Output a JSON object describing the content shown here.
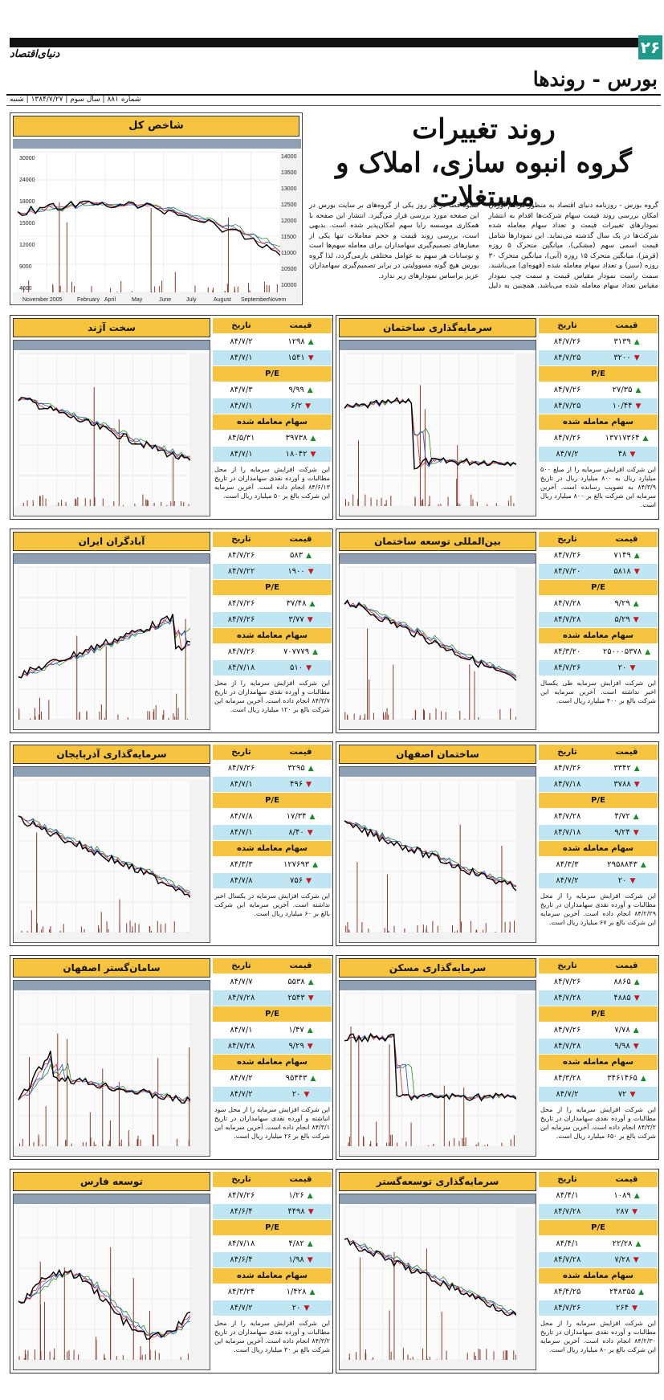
{
  "header": {
    "page_number": "۲۶",
    "logo": "دنیای‌اقتصاد",
    "section_title": "بورس - روندها",
    "dateline": "شماره ۸۸۱ | سال سوم | ۱۳۸۴/۷/۲۷ | شنبه"
  },
  "index_panel": {
    "title": "شاخص کل",
    "xticks": [
      "November",
      "2005",
      "February",
      "April",
      "May",
      "June",
      "July",
      "August",
      "September",
      "Novem"
    ],
    "yticks_left": [
      "30000",
      "24000",
      "18000",
      "15000",
      "12000",
      "9000",
      "4000"
    ],
    "yticks_right": [
      "14000",
      "13500",
      "13000",
      "12500",
      "12000",
      "11500",
      "11000",
      "10500",
      "10000"
    ]
  },
  "headline": {
    "line1": "روند تغییرات",
    "line2": "گروه انبوه سازی، املاک و مستغلات"
  },
  "intro": "گروه بورس - روزنامه دنیای اقتصاد به منظور فراهم آوردن امکان بررسی روند قیمت سهام شرکت‌ها اقدام به انتشار نمودارهای تغییرات قیمت و تعداد سهام معامله شده شرکت‌ها در یک سال گذشته می‌نماید. این نمودارها شامل قیمت اسمی سهم (مشکی)، میانگین متحرک ۵ روزه (قرمز)، میانگین متحرک ۱۵ روزه (آبی)، میانگین متحرک ۳۰ روزه (سبز) و تعداد سهام معامله شده (قهوه‌ای) می‌باشند. سمت راست نمودار مقیاس قیمت و سمت چپ نمودار مقیاس تعداد سهام معامله شده می‌باشد. همچنین به دلیل کمبود فضا در هر روز یکی از گروه‌های بر سایت بورس در این صفحه مورد بررسی قرار می‌گیرد. انتشار این صفحه با همکاری موسسه رایا سهم امکان‌پذیر شده است. بدیهی است، بررسی روند قیمت و حجم معاملات تنها یکی از معیارهای تصمیم‌گیری سهامداران برای معامله سهم‌ها است و نوسانات هر سهم به عوامل مختلفی بازمی‌گردد، لذا گروه بورس هیچ گونه مسوولیتی در برابر تصمیم‌گیری سهامداران عزیز براساس نمودارهای زیر ندارد.",
  "labels": {
    "price": "قیمت",
    "date": "تاریخ",
    "pe": "P/E",
    "volume": "سهام معامله شده"
  },
  "panels": [
    {
      "name": "سرمایه‌گذاری ساختمان",
      "r": [
        [
          "۳۱۳۹",
          "۸۴/۷/۲۶"
        ],
        [
          "۳۲۰۰",
          "۸۴/۷/۲۵"
        ],
        [
          "۲۷/۳۵",
          "۸۴/۷/۲۶"
        ],
        [
          "۱۰/۴۴",
          "۸۴/۷/۲۵"
        ],
        [
          "۱۳۷۱۷۳۶۴",
          "۸۴/۷/۲۶"
        ],
        [
          "۴۸",
          "۸۴/۷/۲"
        ]
      ],
      "note": "این شرکت افزایش سرمایه را از مبلغ ۵۰۰ میلیارد ریال به ۸۰۰ میلیارد ریال در تاریخ ۸۴/۳/۹ به تصویب رسانده است. آخرین سرمایه این شرکت بالغ بر ۸۰۰ میلیارد ریال است."
    },
    {
      "name": "سخت آژند",
      "r": [
        [
          "۱۲۹۸",
          "۸۴/۷/۲"
        ],
        [
          "۱۵۴۱",
          "۸۴/۷/۱"
        ],
        [
          "۹/۹۹",
          "۸۴/۷/۳"
        ],
        [
          "۶/۲",
          "۸۴/۷/۱"
        ],
        [
          "۳۹۷۳۸",
          "۸۴/۵/۳۱"
        ],
        [
          "۱۸۰۴۲",
          "۸۴/۷/۱"
        ]
      ],
      "note": "این شرکت افزایش سرمایه را از محل مطالبات و آورده نقدی سهامداران در تاریخ ۸۴/۶/۱۳ انجام داده است. آخرین سرمایه این شرکت بالغ بر ۵۰ میلیارد ریال است."
    },
    {
      "name": "بین‌المللی توسعه ساختمان",
      "r": [
        [
          "۷۱۴۹",
          "۸۴/۷/۲۶"
        ],
        [
          "۵۸۱۸",
          "۸۴/۷/۲۰"
        ],
        [
          "۹/۲۹",
          "۸۴/۷/۲۸"
        ],
        [
          "۵/۲۹",
          "۸۴/۷/۲۸"
        ],
        [
          "۲۵۰۰۰۵۳۷۸",
          "۸۴/۳/۲۰"
        ],
        [
          "۲۰",
          "۸۴/۷/۲۶"
        ]
      ],
      "note": "این شرکت افزایش سرمایه طی یکسال اخیر نداشته است. آخرین سرمایه این شرکت بالغ بر ۴۰۰ میلیارد ریال است."
    },
    {
      "name": "آبادگران ایران",
      "r": [
        [
          "۵۸۳",
          "۸۴/۷/۲۶"
        ],
        [
          "۱۹۰۰",
          "۸۴/۷/۲۲"
        ],
        [
          "۳۷/۴۸",
          "۸۴/۷/۲۶"
        ],
        [
          "۳/۷۷",
          "۸۴/۷/۲۶"
        ],
        [
          "۷۰۷۷۷۹",
          "۸۴/۷/۲۶"
        ],
        [
          "۵۱۰",
          "۸۴/۷/۱۸"
        ]
      ],
      "note": "این شرکت افزایش سرمایه را از محل مطالبات و آورده نقدی سهامداران در تاریخ ۸۴/۳/۷ انجام داده است. آخرین سرمایه این شرکت بالغ بر ۱۲۰ میلیارد ریال است."
    },
    {
      "name": "ساختمان اصفهان",
      "r": [
        [
          "۳۳۴۲",
          "۸۴/۷/۲۶"
        ],
        [
          "۳۷۸۸",
          "۸۴/۷/۱۸"
        ],
        [
          "۴/۷۲",
          "۸۴/۷/۲۸"
        ],
        [
          "۹/۲۴",
          "۸۴/۷/۱۸"
        ],
        [
          "۲۹۵۸۸۴۳",
          "۸۴/۳/۳"
        ],
        [
          "۲۰",
          "۸۴/۷/۲"
        ]
      ],
      "note": "این شرکت افزایش سرمایه را از محل مطالبات و آورده نقدی سهامداران در تاریخ ۸۴/۲/۲۹ انجام داده است. آخرین سرمایه این شرکت بالغ بر ۶۷ میلیارد ریال است."
    },
    {
      "name": "سرمایه‌گذاری آذربایجان",
      "r": [
        [
          "۳۲۹۵",
          "۸۴/۷/۲۶"
        ],
        [
          "۴۹۶",
          "۸۴/۷/۱"
        ],
        [
          "۱۷/۳۴",
          "۸۴/۷/۸"
        ],
        [
          "۸/۴۰",
          "۸۴/۷/۱"
        ],
        [
          "۱۲۷۶۹۳",
          "۸۴/۳/۳"
        ],
        [
          "۷۵۶",
          "۸۴/۷/۸"
        ]
      ],
      "note": "این شرکت افزایش سرمایه در یکسال اخیر نداشته است. آخرین سرمایه این شرکت بالغ بر ۶۰ میلیارد ریال است."
    },
    {
      "name": "سرمایه‌گذاری مسکن",
      "r": [
        [
          "۸۸۶۵",
          "۸۴/۷/۲۶"
        ],
        [
          "۴۸۸۵",
          "۸۴/۷/۲۸"
        ],
        [
          "۷/۷۸",
          "۸۴/۷/۲۶"
        ],
        [
          "۹/۹۸",
          "۸۴/۷/۲۸"
        ],
        [
          "۳۴۶۱۴۶۵",
          "۸۴/۳/۲۸"
        ],
        [
          "۷۲",
          "۸۴/۷/۲"
        ]
      ],
      "note": "این شرکت افزایش سرمایه را از محل مطالبات و آورده نقدی سهامداران در تاریخ ۸۴/۳/۲ انجام داده است. آخرین سرمایه این شرکت بالغ بر ۶۵۰ میلیارد ریال است."
    },
    {
      "name": "سامان‌گستر اصفهان",
      "r": [
        [
          "۵۵۳۸",
          "۸۴/۷/۷"
        ],
        [
          "۲۵۴۳",
          "۸۴/۷/۲۸"
        ],
        [
          "۱/۴۷",
          "۸۴/۷/۱"
        ],
        [
          "۹/۲۹",
          "۸۴/۷/۲۸"
        ],
        [
          "۹۵۴۴۳",
          "۸۴/۷/۲"
        ],
        [
          "۲۰",
          "۸۴/۷/۲"
        ]
      ],
      "note": "این شرکت افزایش سرمایه را از محل سود انباشته و آورده نقدی سهامداران در تاریخ ۸۴/۳/۱ انجام داده است. آخرین سرمایه این شرکت بالغ بر ۲۶ میلیارد ریال است."
    },
    {
      "name": "سرمایه‌گذاری توسعه‌گستر",
      "r": [
        [
          "۱۰۸۹",
          "۸۴/۴/۱"
        ],
        [
          "۲۸۷",
          "۸۴/۷/۲۸"
        ],
        [
          "۲۲/۲۸",
          "۸۴/۴/۱"
        ],
        [
          "۷/۲۸",
          "۸۴/۷/۲۸"
        ],
        [
          "۲۴۸۳۵۵",
          "۸۴/۴/۲۵"
        ],
        [
          "۲۶۴",
          "۸۴/۷/۲۶"
        ]
      ],
      "note": "این شرکت افزایش سرمایه را از محل مطالبات و آورده نقدی سهامداران در تاریخ ۸۴/۲/۳۰ انجام داده است. آخرین سرمایه این شرکت بالغ بر ۸۰ میلیارد ریال است."
    },
    {
      "name": "توسعه فارس",
      "r": [
        [
          "۱/۲۶",
          "۸۴/۷/۲۶"
        ],
        [
          "۴۴۹۸",
          "۸۴/۶/۴"
        ],
        [
          "۴/۸۲",
          "۸۴/۷/۱۸"
        ],
        [
          "۱/۹۸",
          "۸۴/۶/۴"
        ],
        [
          "۱/۴۲۸",
          "۸۴/۳/۲۴"
        ],
        [
          "۲۰",
          "۸۴/۷/۲"
        ]
      ],
      "note": "این شرکت افزایش سرمایه را از محل مطالبات و آورده نقدی سهامداران در تاریخ ۸۴/۳/۲ انجام داده است. آخرین سرمایه این شرکت بالغ بر ۳۰ میلیارد ریال است."
    }
  ],
  "colors": {
    "yellow": "#f6c43f",
    "light_blue": "#bfe6f2",
    "up": "#1a8a2a",
    "down": "#c8161e",
    "teal": "#1f9a8a"
  }
}
